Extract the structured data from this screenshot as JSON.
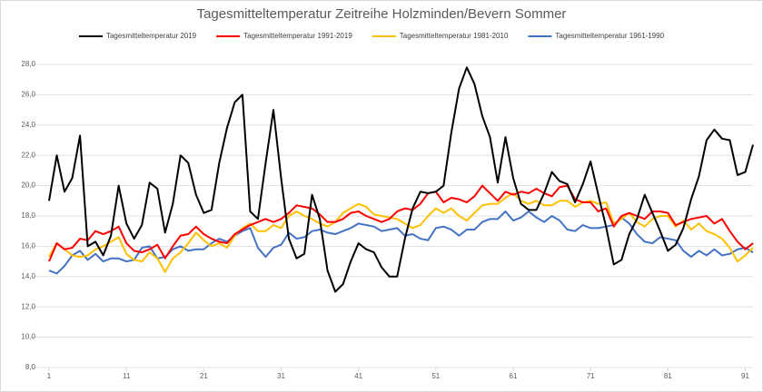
{
  "chart_data": {
    "type": "line",
    "title": "Tagesmitteltemperatur Zeitreihe Holzminden/Bevern Sommer",
    "x": [
      1,
      2,
      3,
      4,
      5,
      6,
      7,
      8,
      9,
      10,
      11,
      12,
      13,
      14,
      15,
      16,
      17,
      18,
      19,
      20,
      21,
      22,
      23,
      24,
      25,
      26,
      27,
      28,
      29,
      30,
      31,
      32,
      33,
      34,
      35,
      36,
      37,
      38,
      39,
      40,
      41,
      42,
      43,
      44,
      45,
      46,
      47,
      48,
      49,
      50,
      51,
      52,
      53,
      54,
      55,
      56,
      57,
      58,
      59,
      60,
      61,
      62,
      63,
      64,
      65,
      66,
      67,
      68,
      69,
      70,
      71,
      72,
      73,
      74,
      75,
      76,
      77,
      78,
      79,
      80,
      81,
      82,
      83,
      84,
      85,
      86,
      87,
      88,
      89,
      90,
      91,
      92
    ],
    "xlim": [
      1,
      92
    ],
    "xticks": [
      1,
      11,
      21,
      31,
      41,
      51,
      61,
      71,
      81,
      91
    ],
    "ylim": [
      8,
      28
    ],
    "yticks": [
      {
        "value": 8,
        "label": "8,0"
      },
      {
        "value": 10,
        "label": "10,0"
      },
      {
        "value": 12,
        "label": "12,0"
      },
      {
        "value": 14,
        "label": "14,0"
      },
      {
        "value": 16,
        "label": "16,0"
      },
      {
        "value": 18,
        "label": "18,0"
      },
      {
        "value": 20,
        "label": "20,0"
      },
      {
        "value": 22,
        "label": "22,0"
      },
      {
        "value": 24,
        "label": "24,0"
      },
      {
        "value": 26,
        "label": "26,0"
      },
      {
        "value": 28,
        "label": "28,0"
      }
    ],
    "grid": true,
    "legend": "top",
    "series": [
      {
        "name": "Tagesmitteltemperatur 2019",
        "color": "#000000",
        "values": [
          19.0,
          22.0,
          19.6,
          20.5,
          23.3,
          16.0,
          16.3,
          15.4,
          16.7,
          20.0,
          17.5,
          16.5,
          17.4,
          20.2,
          19.8,
          16.9,
          18.8,
          22.0,
          21.5,
          19.4,
          18.2,
          18.4,
          21.5,
          23.8,
          25.5,
          26.0,
          18.3,
          17.8,
          21.5,
          25.0,
          20.5,
          16.5,
          15.2,
          15.5,
          19.4,
          17.8,
          14.4,
          13.0,
          13.5,
          15.0,
          16.2,
          15.8,
          15.6,
          14.6,
          14.0,
          14.0,
          16.5,
          18.5,
          19.6,
          19.5,
          19.6,
          20.0,
          23.5,
          26.4,
          27.8,
          26.7,
          24.6,
          23.2,
          20.2,
          23.2,
          20.5,
          18.8,
          18.4,
          18.4,
          19.5,
          20.9,
          20.3,
          20.1,
          18.9,
          20.1,
          21.6,
          19.4,
          17.3,
          14.8,
          15.1,
          16.8,
          17.8,
          19.4,
          18.2,
          17.0,
          15.7,
          16.1,
          17.2,
          19.1,
          20.6,
          23.0,
          23.7,
          23.1,
          23.0,
          20.7,
          20.9,
          22.7
        ]
      },
      {
        "name": "Tagesmitteltemperatur 1991-2019",
        "color": "#ff0000",
        "values": [
          15.0,
          16.2,
          15.8,
          15.9,
          16.5,
          16.4,
          17.0,
          16.8,
          17.0,
          17.3,
          16.2,
          15.7,
          15.6,
          15.8,
          16.1,
          15.2,
          16.0,
          16.7,
          16.8,
          17.3,
          16.8,
          16.5,
          16.3,
          16.2,
          16.8,
          17.1,
          17.4,
          17.6,
          17.8,
          17.6,
          17.8,
          18.2,
          18.7,
          18.6,
          18.5,
          18.1,
          17.6,
          17.6,
          17.8,
          18.2,
          18.3,
          18.0,
          17.8,
          17.6,
          17.8,
          18.3,
          18.5,
          18.4,
          18.8,
          19.5,
          19.6,
          18.9,
          19.2,
          19.1,
          18.9,
          19.3,
          20.0,
          19.5,
          19.0,
          19.6,
          19.4,
          19.6,
          19.5,
          19.8,
          19.5,
          19.3,
          19.9,
          20.0,
          19.1,
          18.9,
          18.9,
          18.3,
          18.5,
          17.3,
          18.0,
          18.2,
          18.0,
          17.8,
          18.3,
          18.3,
          18.2,
          17.4,
          17.6,
          17.8,
          17.9,
          18.0,
          17.5,
          17.8,
          17.0,
          16.3,
          15.8,
          16.2
        ]
      },
      {
        "name": "Tagesmitteltemperatur 1981-2010",
        "color": "#ffc000",
        "values": [
          15.3,
          16.2,
          15.8,
          15.4,
          15.3,
          15.4,
          15.8,
          16.0,
          16.3,
          16.6,
          15.5,
          15.1,
          15.0,
          15.6,
          15.2,
          14.3,
          15.2,
          15.6,
          16.2,
          16.9,
          16.4,
          16.0,
          16.2,
          15.9,
          16.7,
          17.2,
          17.5,
          17.0,
          17.0,
          17.4,
          17.2,
          18.0,
          18.3,
          18.0,
          17.8,
          17.5,
          17.3,
          17.6,
          18.2,
          18.5,
          18.8,
          18.6,
          18.1,
          18.0,
          17.9,
          17.8,
          17.5,
          17.2,
          17.4,
          18.0,
          18.5,
          18.2,
          18.5,
          18.0,
          17.7,
          18.2,
          18.7,
          18.8,
          18.8,
          19.2,
          19.5,
          19.0,
          18.8,
          19.0,
          18.7,
          18.7,
          19.0,
          19.0,
          18.6,
          18.9,
          19.0,
          18.8,
          18.9,
          17.5,
          17.8,
          18.2,
          17.6,
          17.3,
          17.8,
          18.0,
          18.0,
          17.3,
          17.7,
          17.1,
          17.5,
          17.0,
          16.8,
          16.5,
          15.9,
          15.0,
          15.4,
          15.9
        ]
      },
      {
        "name": "Tagesmitteltemperatur 1961-1990",
        "color": "#4472c4",
        "values": [
          14.4,
          14.2,
          14.7,
          15.4,
          15.7,
          15.1,
          15.5,
          15.0,
          15.2,
          15.2,
          15.0,
          15.1,
          15.9,
          16.0,
          15.2,
          15.3,
          15.8,
          16.0,
          15.7,
          15.8,
          15.8,
          16.2,
          16.5,
          16.3,
          16.7,
          17.0,
          17.2,
          15.9,
          15.3,
          15.9,
          16.1,
          16.9,
          16.5,
          16.6,
          17.0,
          17.1,
          16.9,
          16.8,
          17.0,
          17.2,
          17.5,
          17.4,
          17.3,
          17.0,
          17.1,
          17.2,
          16.7,
          16.8,
          16.5,
          16.4,
          17.2,
          17.3,
          17.1,
          16.7,
          17.1,
          17.1,
          17.6,
          17.8,
          17.8,
          18.3,
          17.7,
          17.9,
          18.3,
          17.9,
          17.6,
          18.0,
          17.7,
          17.1,
          17.0,
          17.4,
          17.2,
          17.2,
          17.3,
          17.4,
          17.9,
          17.5,
          16.8,
          16.3,
          16.2,
          16.6,
          16.5,
          16.4,
          15.7,
          15.3,
          15.7,
          15.4,
          15.8,
          15.4,
          15.5,
          15.8,
          15.9,
          15.6
        ]
      }
    ]
  }
}
